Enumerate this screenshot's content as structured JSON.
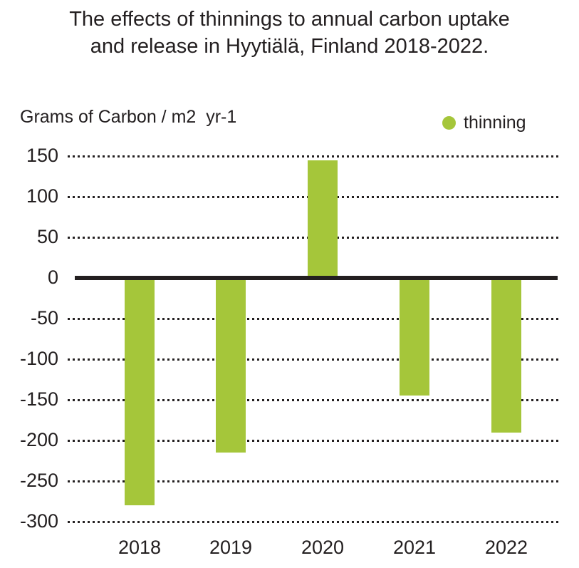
{
  "title": {
    "line1": "The effects of thinnings to annual carbon uptake",
    "line2": "and release in Hyytiälä, Finland 2018-2022."
  },
  "axis": {
    "unit_label": "Grams of Carbon / m2  yr-1"
  },
  "legend": {
    "label": "thinning",
    "color": "#a5c63a"
  },
  "chart_data": {
    "type": "bar",
    "title": "The effects of thinnings to annual carbon uptake and release in Hyytiälä, Finland 2018-2022.",
    "ylabel": "Grams of Carbon / m2  yr-1",
    "xlabel": "",
    "categories": [
      "2018",
      "2019",
      "2020",
      "2021",
      "2022"
    ],
    "series": [
      {
        "name": "thinning",
        "values": [
          -280,
          -215,
          145,
          -145,
          -190
        ]
      }
    ],
    "yticks": [
      150,
      100,
      50,
      0,
      -50,
      -100,
      -150,
      -200,
      -250,
      -300
    ],
    "ylim": [
      -300,
      150
    ],
    "grid": "horizontal dotted",
    "zero_line": "solid thick",
    "legend_position": "top-right",
    "bar_color": "#a5c63a",
    "axis_color": "#231f20"
  }
}
